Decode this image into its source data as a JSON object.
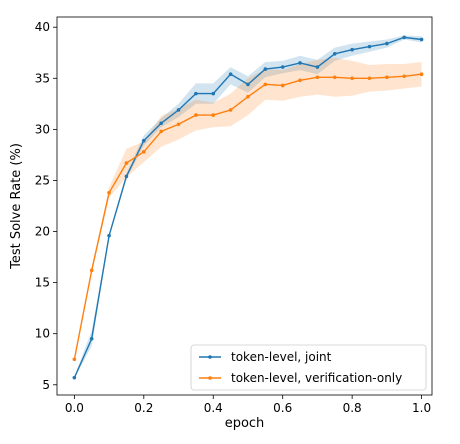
{
  "chart_data": {
    "type": "line",
    "xlabel": "epoch",
    "ylabel": "Test Solve Rate (%)",
    "xlim": [
      -0.05,
      1.03
    ],
    "ylim": [
      4,
      41
    ],
    "x_ticks": [
      0.0,
      0.2,
      0.4,
      0.6,
      0.8,
      1.0
    ],
    "x_tick_labels": [
      "0.0",
      "0.2",
      "0.4",
      "0.6",
      "0.8",
      "1.0"
    ],
    "y_ticks": [
      5,
      10,
      15,
      20,
      25,
      30,
      35,
      40
    ],
    "y_tick_labels": [
      "5",
      "10",
      "15",
      "20",
      "25",
      "30",
      "35",
      "40"
    ],
    "grid": false,
    "legend_position": "lower-right",
    "series": [
      {
        "name": "token-level, joint",
        "color": "#1f77b4",
        "x": [
          0.0,
          0.05,
          0.1,
          0.15,
          0.2,
          0.25,
          0.3,
          0.35,
          0.4,
          0.45,
          0.5,
          0.55,
          0.6,
          0.65,
          0.7,
          0.75,
          0.8,
          0.85,
          0.9,
          0.95,
          1.0
        ],
        "y": [
          5.7,
          9.5,
          19.6,
          25.4,
          28.9,
          30.6,
          31.9,
          33.5,
          33.5,
          35.4,
          34.4,
          35.9,
          36.1,
          36.5,
          36.1,
          37.4,
          37.8,
          38.1,
          38.4,
          39.0,
          38.8
        ],
        "band_low": [
          5.6,
          8.8,
          19.4,
          25.1,
          28.4,
          30.2,
          31.2,
          32.5,
          32.5,
          34.4,
          33.6,
          35.1,
          35.5,
          35.8,
          35.4,
          36.7,
          37.2,
          37.6,
          38.0,
          38.8,
          38.5
        ],
        "band_high": [
          5.8,
          10.3,
          19.8,
          25.7,
          29.4,
          31.1,
          32.5,
          34.5,
          34.5,
          36.1,
          35.2,
          36.6,
          36.7,
          37.2,
          36.8,
          38.0,
          38.4,
          38.6,
          38.8,
          39.2,
          39.1
        ]
      },
      {
        "name": "token-level, verification-only",
        "color": "#ff7f0e",
        "x": [
          0.0,
          0.05,
          0.1,
          0.15,
          0.2,
          0.25,
          0.3,
          0.35,
          0.4,
          0.45,
          0.5,
          0.55,
          0.6,
          0.65,
          0.7,
          0.75,
          0.8,
          0.85,
          0.9,
          0.95,
          1.0
        ],
        "y": [
          7.5,
          16.2,
          23.8,
          26.7,
          27.8,
          29.8,
          30.5,
          31.4,
          31.4,
          31.9,
          33.2,
          34.4,
          34.3,
          34.8,
          35.1,
          35.1,
          35.0,
          35.0,
          35.1,
          35.2,
          35.4
        ],
        "band_low": [
          7.4,
          15.9,
          23.3,
          25.3,
          26.8,
          28.3,
          29.0,
          29.9,
          30.2,
          30.3,
          31.4,
          32.9,
          32.8,
          33.2,
          33.4,
          33.2,
          33.3,
          33.7,
          33.8,
          34.0,
          34.2
        ],
        "band_high": [
          7.6,
          16.5,
          24.3,
          28.1,
          28.8,
          31.3,
          32.0,
          32.9,
          32.6,
          33.5,
          35.0,
          35.9,
          35.8,
          36.4,
          36.8,
          37.0,
          36.7,
          36.3,
          36.4,
          36.4,
          36.6
        ]
      }
    ]
  }
}
